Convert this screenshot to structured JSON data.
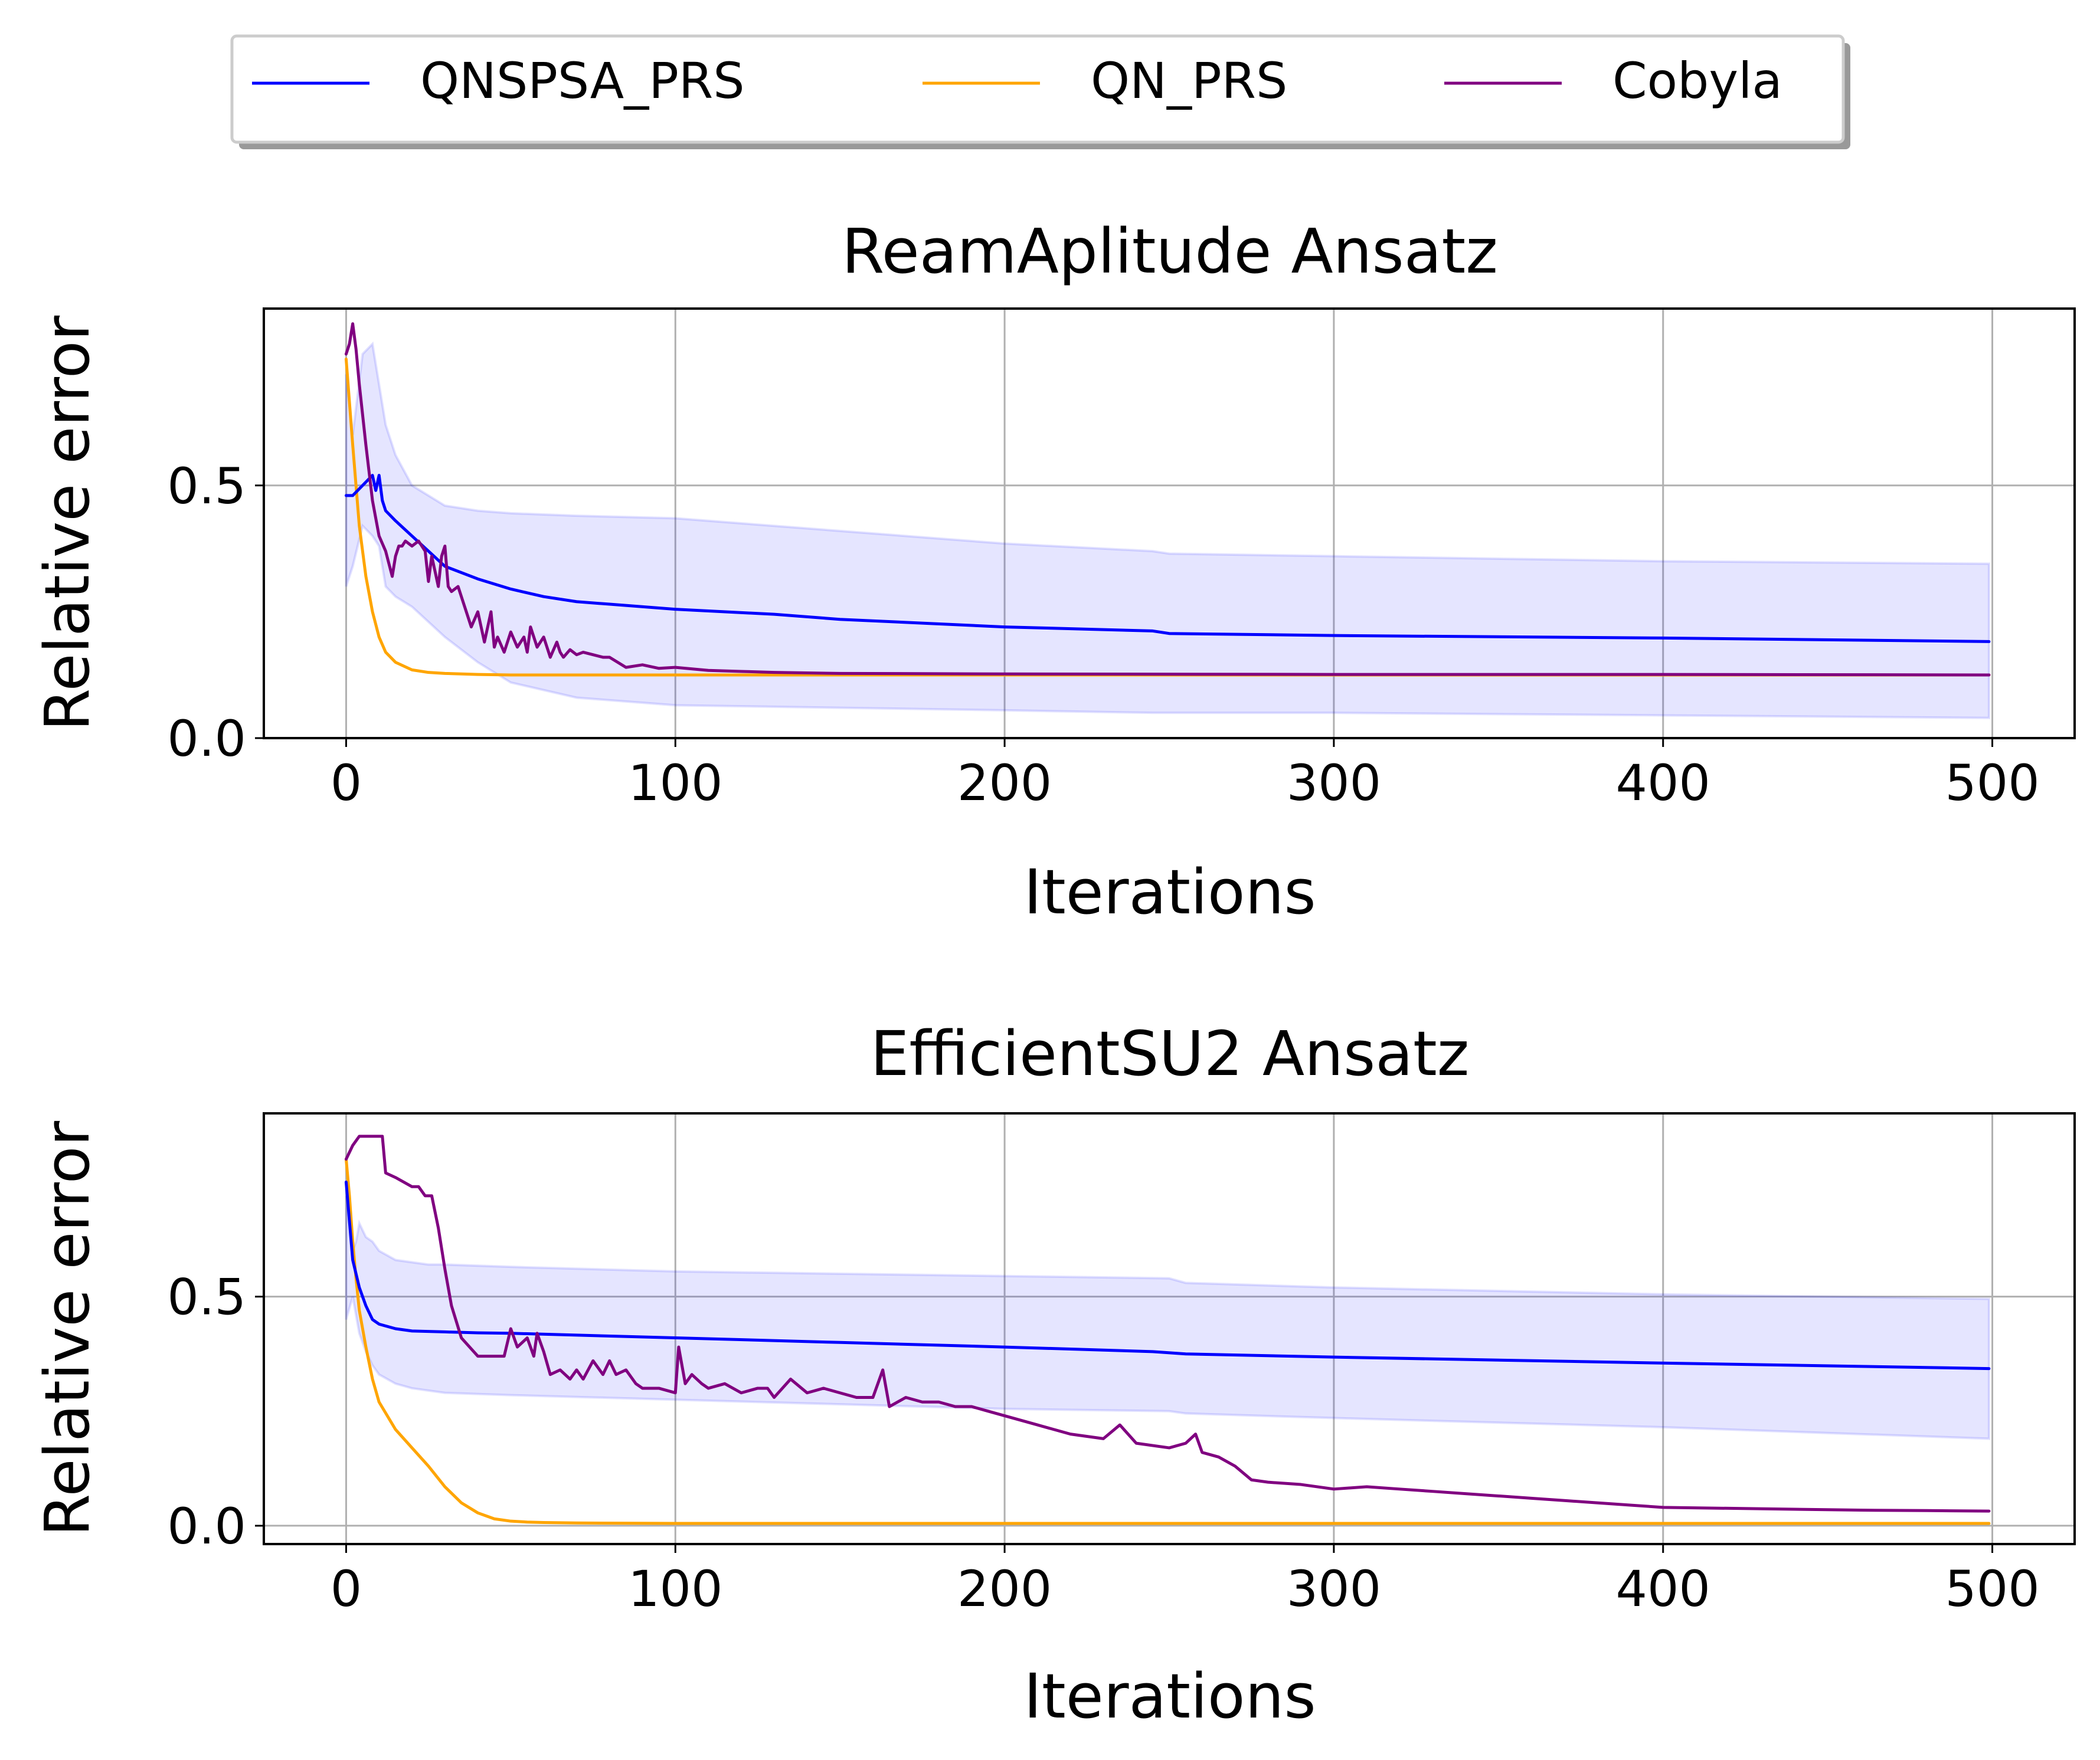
{
  "legend": {
    "placement": "top-center",
    "items": [
      {
        "label": "QNSPSA_PRS",
        "color": "#0000ff"
      },
      {
        "label": "QN_PRS",
        "color": "#ffa500"
      },
      {
        "label": "Cobyla",
        "color": "#800080"
      }
    ]
  },
  "chart_data": [
    {
      "type": "line",
      "title": "ReamAplitude Ansatz",
      "xlabel": "Iterations",
      "ylabel": "Relative error",
      "xlim": [
        -25,
        525
      ],
      "ylim": [
        0.0,
        0.85
      ],
      "xticks": [
        0,
        100,
        200,
        300,
        400,
        500
      ],
      "xtick_labels": [
        "0",
        "100",
        "200",
        "300",
        "400",
        "500"
      ],
      "yticks": [
        0.0,
        0.5
      ],
      "ytick_labels": [
        "0.0",
        "0.5"
      ],
      "grid": true,
      "band": {
        "series": "QNSPSA_PRS",
        "color": "#0000ff",
        "x": [
          0,
          2,
          5,
          8,
          10,
          12,
          15,
          20,
          30,
          40,
          50,
          70,
          100,
          150,
          200,
          245,
          250,
          300,
          400,
          499
        ],
        "upper": [
          0.72,
          0.6,
          0.76,
          0.78,
          0.7,
          0.62,
          0.56,
          0.5,
          0.46,
          0.45,
          0.445,
          0.44,
          0.435,
          0.41,
          0.385,
          0.37,
          0.365,
          0.36,
          0.35,
          0.345
        ],
        "lower": [
          0.3,
          0.34,
          0.42,
          0.4,
          0.38,
          0.3,
          0.28,
          0.26,
          0.2,
          0.15,
          0.11,
          0.08,
          0.065,
          0.06,
          0.055,
          0.05,
          0.05,
          0.05,
          0.045,
          0.04
        ]
      },
      "series": [
        {
          "name": "QNSPSA_PRS",
          "color": "#0000ff",
          "x": [
            0,
            2,
            5,
            8,
            9,
            10,
            11,
            12,
            15,
            20,
            25,
            30,
            40,
            50,
            60,
            70,
            80,
            100,
            130,
            150,
            200,
            245,
            250,
            300,
            400,
            499
          ],
          "y": [
            0.48,
            0.48,
            0.5,
            0.52,
            0.49,
            0.52,
            0.47,
            0.45,
            0.43,
            0.4,
            0.37,
            0.34,
            0.315,
            0.295,
            0.28,
            0.27,
            0.265,
            0.255,
            0.245,
            0.235,
            0.22,
            0.212,
            0.207,
            0.203,
            0.198,
            0.191
          ]
        },
        {
          "name": "QN_PRS",
          "color": "#ffa500",
          "x": [
            0,
            2,
            4,
            6,
            8,
            10,
            12,
            15,
            20,
            25,
            30,
            40,
            50,
            60,
            80,
            100,
            200,
            300,
            400,
            499
          ],
          "y": [
            0.75,
            0.58,
            0.42,
            0.32,
            0.25,
            0.2,
            0.17,
            0.15,
            0.135,
            0.13,
            0.128,
            0.126,
            0.125,
            0.125,
            0.125,
            0.125,
            0.125,
            0.125,
            0.125,
            0.125
          ]
        },
        {
          "name": "Cobyla",
          "color": "#800080",
          "x": [
            0,
            1,
            2,
            3,
            4,
            6,
            8,
            10,
            12,
            14,
            15,
            16,
            17,
            18,
            20,
            22,
            24,
            25,
            26,
            27,
            28,
            29,
            30,
            31,
            32,
            34,
            36,
            38,
            40,
            42,
            44,
            45,
            46,
            48,
            50,
            52,
            54,
            55,
            56,
            58,
            60,
            62,
            64,
            65,
            66,
            68,
            70,
            72,
            75,
            78,
            80,
            85,
            90,
            95,
            100,
            110,
            120,
            130,
            150,
            200,
            300,
            400,
            499
          ],
          "y": [
            0.76,
            0.78,
            0.82,
            0.77,
            0.7,
            0.58,
            0.47,
            0.4,
            0.37,
            0.32,
            0.36,
            0.38,
            0.38,
            0.39,
            0.38,
            0.39,
            0.37,
            0.31,
            0.36,
            0.33,
            0.3,
            0.36,
            0.38,
            0.3,
            0.29,
            0.3,
            0.26,
            0.22,
            0.25,
            0.19,
            0.25,
            0.18,
            0.2,
            0.17,
            0.21,
            0.18,
            0.2,
            0.17,
            0.22,
            0.18,
            0.2,
            0.16,
            0.19,
            0.17,
            0.16,
            0.175,
            0.165,
            0.17,
            0.165,
            0.16,
            0.16,
            0.14,
            0.145,
            0.138,
            0.14,
            0.134,
            0.132,
            0.13,
            0.128,
            0.127,
            0.126,
            0.126,
            0.125
          ]
        }
      ]
    },
    {
      "type": "line",
      "title": "EfficientSU2 Ansatz",
      "xlabel": "Iterations",
      "ylabel": "Relative error",
      "xlim": [
        -25,
        525
      ],
      "ylim": [
        -0.04,
        0.9
      ],
      "xticks": [
        0,
        100,
        200,
        300,
        400,
        500
      ],
      "xtick_labels": [
        "0",
        "100",
        "200",
        "300",
        "400",
        "500"
      ],
      "yticks": [
        0.0,
        0.5
      ],
      "ytick_labels": [
        "0.0",
        "0.5"
      ],
      "grid": true,
      "band": {
        "series": "QNSPSA_PRS",
        "color": "#0000ff",
        "x": [
          0,
          2,
          3,
          4,
          6,
          8,
          10,
          15,
          20,
          25,
          30,
          50,
          100,
          200,
          250,
          255,
          300,
          400,
          499
        ],
        "upper": [
          0.72,
          0.6,
          0.62,
          0.66,
          0.63,
          0.62,
          0.6,
          0.58,
          0.575,
          0.57,
          0.57,
          0.565,
          0.555,
          0.545,
          0.54,
          0.53,
          0.52,
          0.505,
          0.495
        ],
        "lower": [
          0.45,
          0.5,
          0.46,
          0.42,
          0.38,
          0.35,
          0.33,
          0.31,
          0.3,
          0.295,
          0.29,
          0.285,
          0.275,
          0.255,
          0.25,
          0.245,
          0.235,
          0.215,
          0.19
        ]
      },
      "series": [
        {
          "name": "QNSPSA_PRS",
          "color": "#0000ff",
          "x": [
            0,
            2,
            4,
            6,
            8,
            10,
            15,
            20,
            25,
            30,
            40,
            50,
            100,
            150,
            200,
            245,
            255,
            300,
            400,
            499
          ],
          "y": [
            0.75,
            0.58,
            0.52,
            0.48,
            0.45,
            0.44,
            0.43,
            0.425,
            0.424,
            0.423,
            0.421,
            0.42,
            0.41,
            0.4,
            0.39,
            0.38,
            0.375,
            0.368,
            0.355,
            0.343
          ]
        },
        {
          "name": "QN_PRS",
          "color": "#ffa500",
          "x": [
            0,
            1,
            2,
            3,
            4,
            6,
            8,
            10,
            15,
            20,
            25,
            30,
            35,
            40,
            45,
            50,
            55,
            60,
            70,
            100,
            200,
            300,
            400,
            499
          ],
          "y": [
            0.8,
            0.72,
            0.62,
            0.54,
            0.47,
            0.39,
            0.32,
            0.27,
            0.21,
            0.17,
            0.13,
            0.085,
            0.05,
            0.028,
            0.015,
            0.01,
            0.008,
            0.007,
            0.006,
            0.005,
            0.005,
            0.005,
            0.005,
            0.005
          ]
        },
        {
          "name": "Cobyla",
          "color": "#800080",
          "x": [
            0,
            2,
            4,
            6,
            8,
            10,
            11,
            12,
            15,
            20,
            22,
            24,
            26,
            28,
            30,
            32,
            35,
            40,
            45,
            48,
            50,
            52,
            55,
            57,
            58,
            60,
            62,
            65,
            68,
            70,
            72,
            75,
            78,
            80,
            82,
            85,
            88,
            90,
            95,
            100,
            101,
            103,
            105,
            108,
            110,
            115,
            120,
            125,
            128,
            130,
            135,
            140,
            145,
            150,
            155,
            160,
            163,
            165,
            170,
            175,
            180,
            185,
            190,
            195,
            200,
            210,
            220,
            230,
            235,
            240,
            250,
            255,
            258,
            260,
            265,
            270,
            275,
            280,
            290,
            300,
            310,
            320,
            330,
            340,
            350,
            360,
            370,
            380,
            390,
            400,
            420,
            440,
            460,
            480,
            499
          ],
          "y": [
            0.8,
            0.83,
            0.85,
            0.85,
            0.85,
            0.85,
            0.85,
            0.77,
            0.76,
            0.74,
            0.74,
            0.72,
            0.72,
            0.65,
            0.56,
            0.48,
            0.41,
            0.37,
            0.37,
            0.37,
            0.43,
            0.39,
            0.41,
            0.37,
            0.42,
            0.38,
            0.33,
            0.34,
            0.32,
            0.34,
            0.32,
            0.36,
            0.33,
            0.36,
            0.33,
            0.34,
            0.31,
            0.3,
            0.3,
            0.29,
            0.39,
            0.31,
            0.33,
            0.31,
            0.3,
            0.31,
            0.29,
            0.3,
            0.3,
            0.28,
            0.32,
            0.29,
            0.3,
            0.29,
            0.28,
            0.28,
            0.34,
            0.26,
            0.28,
            0.27,
            0.27,
            0.26,
            0.26,
            0.25,
            0.24,
            0.22,
            0.2,
            0.19,
            0.22,
            0.18,
            0.17,
            0.18,
            0.2,
            0.16,
            0.15,
            0.13,
            0.1,
            0.095,
            0.09,
            0.08,
            0.085,
            0.08,
            0.075,
            0.07,
            0.065,
            0.06,
            0.055,
            0.05,
            0.045,
            0.04,
            0.038,
            0.036,
            0.034,
            0.033,
            0.032
          ]
        }
      ]
    }
  ]
}
